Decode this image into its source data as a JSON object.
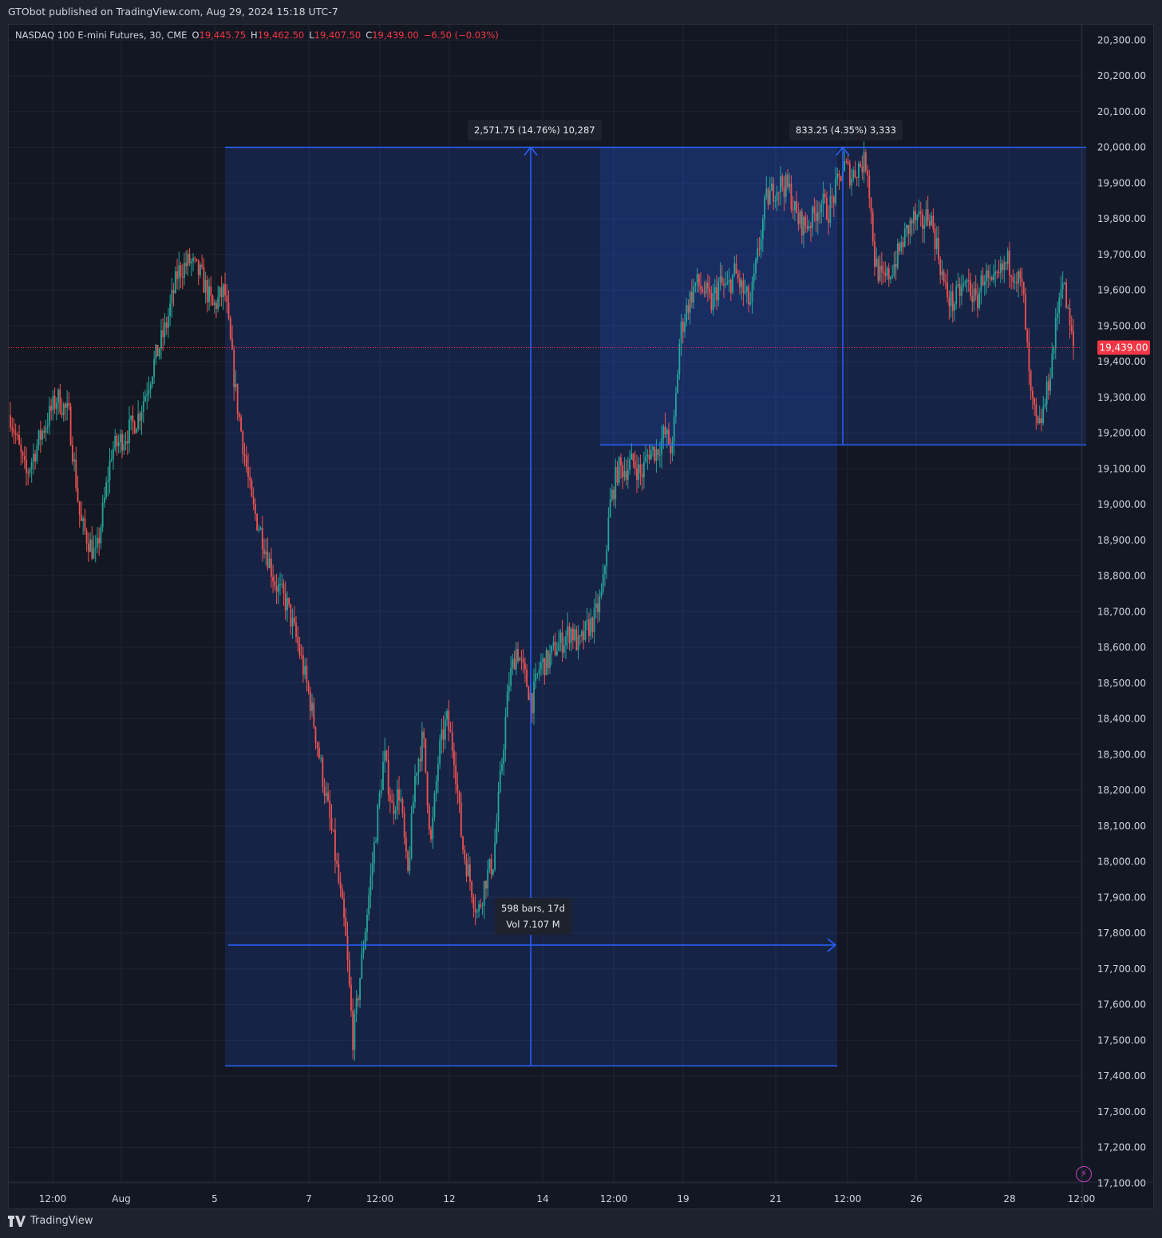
{
  "header": {
    "publisher_text": "GTObot published on TradingView.com, Aug 29, 2024 15:18 UTC-7"
  },
  "legend": {
    "symbol": "NASDAQ 100 E-mini Futures, 30, CME",
    "open_label": "O",
    "open_value": "19,445.75",
    "high_label": "H",
    "high_value": "19,462.50",
    "low_label": "L",
    "low_value": "19,407.50",
    "close_label": "C",
    "close_value": "19,439.00",
    "change": "−6.50 (−0.03%)"
  },
  "colors": {
    "background": "#131722",
    "up": "#26a69a",
    "down": "#ef5350",
    "tool": "#2962ff",
    "price_tag": "#f23645"
  },
  "chart_data": {
    "type": "candlestick",
    "symbol": "NASDAQ 100 E-mini Futures",
    "interval": "30",
    "exchange": "CME",
    "ylim": [
      17050,
      20350
    ],
    "grid": true,
    "y_ticks": [
      "20,300.00",
      "20,200.00",
      "20,100.00",
      "20,000.00",
      "19,900.00",
      "19,800.00",
      "19,700.00",
      "19,600.00",
      "19,500.00",
      "19,400.00",
      "19,300.00",
      "19,200.00",
      "19,100.00",
      "19,000.00",
      "18,900.00",
      "18,800.00",
      "18,700.00",
      "18,600.00",
      "18,500.00",
      "18,400.00",
      "18,300.00",
      "18,200.00",
      "18,100.00",
      "18,000.00",
      "17,900.00",
      "17,800.00",
      "17,700.00",
      "17,600.00",
      "17,500.00",
      "17,400.00",
      "17,300.00",
      "17,200.00",
      "17,100.00"
    ],
    "x_ticks": [
      "12:00",
      "Aug",
      "5",
      "7",
      "12:00",
      "12",
      "14",
      "12:00",
      "19",
      "21",
      "12:00",
      "26",
      "28",
      "12:00"
    ],
    "last_price": 19439.0,
    "last_price_label": "19,439.00",
    "close_path": [
      [
        0,
        19250
      ],
      [
        4,
        19080
      ],
      [
        8,
        19200
      ],
      [
        12,
        19300
      ],
      [
        15,
        19250
      ],
      [
        18,
        18950
      ],
      [
        22,
        18850
      ],
      [
        26,
        19150
      ],
      [
        30,
        19200
      ],
      [
        33,
        19250
      ],
      [
        37,
        19400
      ],
      [
        40,
        19500
      ],
      [
        43,
        19650
      ],
      [
        46,
        19680
      ],
      [
        49,
        19640
      ],
      [
        52,
        19550
      ],
      [
        55,
        19600
      ],
      [
        58,
        19300
      ],
      [
        62,
        19000
      ],
      [
        65,
        18900
      ],
      [
        68,
        18780
      ],
      [
        71,
        18720
      ],
      [
        74,
        18600
      ],
      [
        77,
        18450
      ],
      [
        80,
        18250
      ],
      [
        83,
        18050
      ],
      [
        86,
        17800
      ],
      [
        88,
        17500
      ],
      [
        90,
        17700
      ],
      [
        92,
        17900
      ],
      [
        94,
        18100
      ],
      [
        96,
        18300
      ],
      [
        98,
        18150
      ],
      [
        100,
        18200
      ],
      [
        102,
        17950
      ],
      [
        104,
        18250
      ],
      [
        106,
        18350
      ],
      [
        108,
        18050
      ],
      [
        110,
        18300
      ],
      [
        112,
        18400
      ],
      [
        114,
        18300
      ],
      [
        116,
        18050
      ],
      [
        118,
        17950
      ],
      [
        120,
        17850
      ],
      [
        122,
        17950
      ],
      [
        124,
        18000
      ],
      [
        126,
        18250
      ],
      [
        128,
        18500
      ],
      [
        130,
        18600
      ],
      [
        132,
        18520
      ],
      [
        134,
        18450
      ],
      [
        136,
        18550
      ],
      [
        138,
        18560
      ],
      [
        140,
        18600
      ],
      [
        142,
        18620
      ],
      [
        144,
        18650
      ],
      [
        146,
        18600
      ],
      [
        148,
        18650
      ],
      [
        150,
        18680
      ],
      [
        152,
        18750
      ],
      [
        154,
        19000
      ],
      [
        156,
        19100
      ],
      [
        158,
        19100
      ],
      [
        160,
        19120
      ],
      [
        162,
        19080
      ],
      [
        164,
        19150
      ],
      [
        166,
        19150
      ],
      [
        168,
        19200
      ],
      [
        170,
        19150
      ],
      [
        172,
        19480
      ],
      [
        174,
        19560
      ],
      [
        176,
        19620
      ],
      [
        178,
        19600
      ],
      [
        180,
        19560
      ],
      [
        182,
        19620
      ],
      [
        184,
        19600
      ],
      [
        186,
        19650
      ],
      [
        188,
        19600
      ],
      [
        190,
        19560
      ],
      [
        192,
        19700
      ],
      [
        194,
        19850
      ],
      [
        196,
        19880
      ],
      [
        198,
        19900
      ],
      [
        200,
        19880
      ],
      [
        202,
        19800
      ],
      [
        204,
        19780
      ],
      [
        206,
        19800
      ],
      [
        208,
        19850
      ],
      [
        210,
        19820
      ],
      [
        212,
        19880
      ],
      [
        214,
        19950
      ],
      [
        216,
        19920
      ],
      [
        218,
        19950
      ],
      [
        220,
        19960
      ],
      [
        222,
        19680
      ],
      [
        224,
        19620
      ],
      [
        226,
        19650
      ],
      [
        228,
        19700
      ],
      [
        230,
        19760
      ],
      [
        232,
        19800
      ],
      [
        234,
        19780
      ],
      [
        236,
        19820
      ],
      [
        238,
        19720
      ],
      [
        240,
        19600
      ],
      [
        242,
        19560
      ],
      [
        244,
        19600
      ],
      [
        246,
        19620
      ],
      [
        248,
        19560
      ],
      [
        250,
        19650
      ],
      [
        252,
        19600
      ],
      [
        254,
        19640
      ],
      [
        256,
        19680
      ],
      [
        258,
        19650
      ],
      [
        260,
        19600
      ],
      [
        262,
        19300
      ],
      [
        264,
        19200
      ],
      [
        266,
        19300
      ],
      [
        268,
        19450
      ],
      [
        270,
        19650
      ],
      [
        272,
        19500
      ],
      [
        273,
        19439
      ]
    ],
    "measures": [
      {
        "label": "2,571.75 (14.76%) 10,287",
        "range_label_1": "598 bars, 17d",
        "range_label_2": "Vol 7.107 M",
        "price_low": 17428.25,
        "price_high": 20000.0
      },
      {
        "label": "833.25 (4.35%) 3,333",
        "price_low": 19166.75,
        "price_high": 20000.0
      }
    ]
  },
  "footer": {
    "brand": "TradingView"
  }
}
